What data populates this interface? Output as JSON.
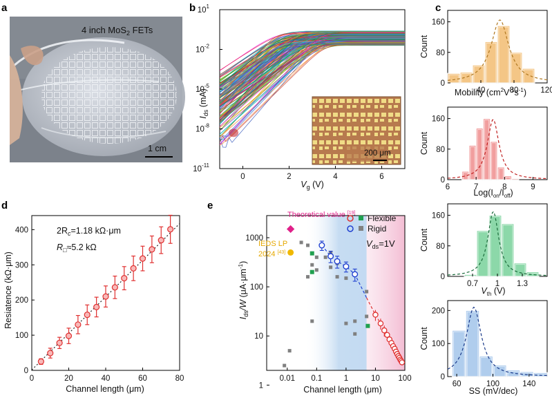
{
  "panel_labels": [
    "a",
    "b",
    "c",
    "d",
    "e"
  ],
  "photo": {
    "caption": "4 inch MoS",
    "caption_sub": "2",
    "caption_tail": " FETs",
    "scalebar_label": "1 cm"
  },
  "chart_data": [
    {
      "id": "b",
      "type": "line",
      "title": "",
      "xlabel": "V",
      "xlabel_sub": "g",
      "xlabel_unit": " (V)",
      "ylabel": "I",
      "ylabel_sub": "ds",
      "ylabel_unit": " (mA)",
      "xlim": [
        -1,
        7
      ],
      "ylim_log10": [
        -11,
        1
      ],
      "x_ticks": [
        0,
        2,
        4,
        6
      ],
      "y_tick_exponents": [
        -11,
        -8,
        -5,
        -2,
        1
      ],
      "y_tick_base": "10",
      "curve_count": 160,
      "vth_range": [
        -0.9,
        1.4
      ],
      "on_current_range_mA": [
        0.02,
        0.25
      ],
      "inset_scalebar_label": "200 μm"
    },
    {
      "id": "c1",
      "type": "bar",
      "xlabel": "Mobility (cm",
      "xlabel_sup": "2",
      "xlabel_mid": "V",
      "xlabel_sup2": "-1",
      "xlabel_end": "s",
      "xlabel_sup3": "-1",
      "xlabel_tail": ")",
      "ylabel": "Count",
      "color": "#f3c07a",
      "xlim": [
        0,
        120
      ],
      "ylim": [
        0,
        190
      ],
      "x_ticks": [
        40,
        80,
        120
      ],
      "y_ticks": [
        0,
        80,
        160
      ],
      "bin_edges": [
        0,
        15,
        30,
        45,
        60,
        75,
        90,
        105
      ],
      "values": [
        25,
        28,
        47,
        108,
        150,
        80,
        38
      ],
      "fit": {
        "center": 63,
        "width": 13,
        "peak": 165
      }
    },
    {
      "id": "c2",
      "type": "bar",
      "xlabel": "Log(I",
      "xlabel_sub": "on",
      "xlabel_mid": "/I",
      "xlabel_sub2": "off",
      "xlabel_tail": ")",
      "ylabel": "Count",
      "color": "#f09494",
      "xlim": [
        6,
        9.5
      ],
      "ylim": [
        0,
        190
      ],
      "x_ticks": [
        6,
        7,
        8,
        9
      ],
      "y_ticks": [
        0,
        80,
        160
      ],
      "bin_edges": [
        6.25,
        6.5,
        6.75,
        7.0,
        7.25,
        7.5,
        7.75,
        8.0,
        8.25,
        8.5,
        8.75,
        9.0,
        9.25
      ],
      "values": [
        0,
        22,
        90,
        135,
        160,
        100,
        33,
        10,
        3,
        0,
        0,
        0
      ],
      "fit": {
        "center": 7.6,
        "width": 0.25,
        "peak": 158
      }
    },
    {
      "id": "c3",
      "type": "bar",
      "xlabel": "V",
      "xlabel_sub": "th",
      "xlabel_tail": " (V)",
      "ylabel": "Count",
      "color": "#80d4a0",
      "xlim": [
        0.4,
        1.6
      ],
      "ylim": [
        0,
        190
      ],
      "x_ticks": [
        0.7,
        1.0,
        1.3
      ],
      "y_ticks": [
        0,
        80,
        160
      ],
      "bin_edges": [
        0.45,
        0.6,
        0.75,
        0.9,
        1.05,
        1.2,
        1.35,
        1.5
      ],
      "values": [
        0,
        5,
        120,
        160,
        138,
        35,
        12
      ],
      "fit": {
        "center": 0.95,
        "width": 0.08,
        "peak": 170
      }
    },
    {
      "id": "c4",
      "type": "bar",
      "xlabel": "SS (mV/dec)",
      "ylabel": "Count",
      "color": "#a8c8ec",
      "xlim": [
        50,
        160
      ],
      "ylim": [
        0,
        230
      ],
      "x_ticks": [
        60,
        100,
        140
      ],
      "y_ticks": [
        0,
        100,
        200
      ],
      "bin_edges": [
        55,
        70,
        85,
        100,
        115,
        130,
        145,
        160
      ],
      "values": [
        140,
        200,
        62,
        35,
        20,
        15,
        12
      ],
      "fit": {
        "center": 79,
        "width": 10,
        "peak": 210
      }
    },
    {
      "id": "d",
      "type": "scatter",
      "xlabel": "Channel length (μm)",
      "ylabel": "Resiatence (kΩ·μm)",
      "xlim": [
        0,
        80
      ],
      "ylim": [
        0,
        440
      ],
      "x_ticks": [
        0,
        20,
        40,
        60,
        80
      ],
      "y_ticks": [
        0,
        100,
        200,
        300,
        400
      ],
      "x": [
        5,
        10,
        15,
        20,
        25,
        30,
        35,
        40,
        45,
        50,
        55,
        60,
        65,
        70,
        75
      ],
      "y": [
        25,
        49,
        78,
        98,
        130,
        158,
        180,
        210,
        236,
        262,
        290,
        318,
        344,
        370,
        401
      ],
      "err": [
        8,
        14,
        16,
        22,
        26,
        28,
        28,
        30,
        32,
        33,
        35,
        35,
        38,
        38,
        40
      ],
      "fit_intercept": 1.18,
      "fit_slope": 5.2,
      "annotation1": "2R",
      "annotation1_sub": "c",
      "annotation1_tail": "=1.18 kΩ·μm",
      "annotation2": "R",
      "annotation2_sub": "□",
      "annotation2_tail": "≈5.2 kΩ"
    },
    {
      "id": "e",
      "type": "scatter",
      "xlabel": "Channel length (μm)",
      "ylabel": "I",
      "ylabel_sub": "ds",
      "ylabel_mid": "/W",
      "ylabel_unit": " (μA·μm",
      "ylabel_sup": "-1",
      "ylabel_tail": ")",
      "xlim_log10": [
        -2.7,
        2.0
      ],
      "ylim_log10": [
        0.3,
        3.45
      ],
      "x_ticks": [
        0.01,
        0.1,
        1,
        10,
        100
      ],
      "x_tick_labels": [
        "0.01",
        "0.1",
        "1",
        "10",
        "100"
      ],
      "y_ticks": [
        1,
        10,
        100,
        1000
      ],
      "y_tick_labels": [
        "1",
        "10",
        "100",
        "1000"
      ],
      "legend": [
        {
          "name": "Flexible"
        },
        {
          "name": "Rigid"
        }
      ],
      "vds_label": "V",
      "vds_sub": "ds",
      "vds_tail": "=1V",
      "theory_label": "Theoretical value ",
      "theory_ref": "[19]",
      "irds_label1": "IEDS LP",
      "irds_label2": "2024 ",
      "irds_ref": "[43]",
      "theory_point": {
        "x": 0.013,
        "y": 1500
      },
      "irds_point": {
        "x": 0.013,
        "y": 500
      },
      "flexible_circles": {
        "x": [
          10,
          15,
          20,
          25,
          30,
          35,
          40,
          45,
          50,
          55,
          60,
          65,
          70,
          75,
          80
        ],
        "y": [
          27,
          18,
          13,
          10.5,
          8.5,
          7.2,
          6.2,
          5.5,
          4.8,
          4.3,
          3.9,
          3.6,
          3.3,
          3.1,
          2.9
        ]
      },
      "rigid_circles": {
        "x": [
          0.15,
          0.3,
          0.5,
          1.0,
          2.0
        ],
        "y": [
          700,
          420,
          330,
          260,
          180
        ]
      },
      "flexible_squares": {
        "x": [
          0.07,
          0.07,
          5.5
        ],
        "y": [
          480,
          200,
          16
        ]
      },
      "rigid_squares": {
        "x": [
          0.008,
          0.012,
          0.03,
          0.05,
          0.05,
          0.07,
          0.07,
          0.1,
          0.1,
          0.2,
          0.3,
          0.3,
          0.5,
          0.5,
          1,
          1,
          2,
          2,
          5,
          5
        ],
        "y": [
          2.5,
          5,
          800,
          700,
          160,
          280,
          20,
          400,
          220,
          400,
          250,
          500,
          300,
          160,
          150,
          18,
          20,
          11,
          80,
          25
        ]
      },
      "rigid_errors": [
        150,
        110,
        90,
        60,
        50
      ]
    }
  ],
  "colors": {
    "orange": "#f3c07a",
    "orange_line": "#b07820",
    "red": "#f09494",
    "red_line": "#c02020",
    "green": "#80d4a0",
    "green_line": "#1a6a3a",
    "blue": "#a8c8ec",
    "blue_line": "#1a3a8a",
    "magenta": "#e0218a",
    "gold": "#f0b800",
    "pt_red": "#e03030",
    "pt_blue": "#2040d0",
    "sq_green": "#20a050",
    "sq_gray": "#808080"
  }
}
